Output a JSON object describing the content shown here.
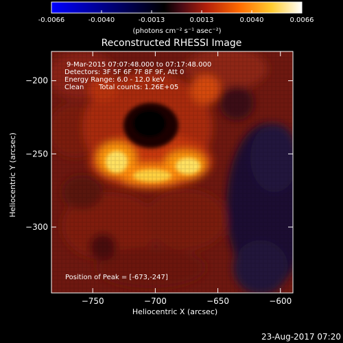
{
  "colorbar": {
    "ticks": [
      "-0.0066",
      "-0.0040",
      "-0.0013",
      "0.0013",
      "0.0040",
      "0.0066"
    ],
    "unit_label": "(photons cm⁻² s⁻¹ asec⁻²)",
    "colors": [
      "#0000ff",
      "#000000",
      "#5a0e18",
      "#c82a0a",
      "#ff7a00",
      "#ffd83a",
      "#ffffff"
    ]
  },
  "chart_data": {
    "type": "heatmap",
    "title": "Reconstructed RHESSI Image",
    "xlabel": "Heliocentric X (arcsec)",
    "ylabel": "Heliocentric Y (arcsec)",
    "xlim": [
      -783,
      -590
    ],
    "ylim": [
      -345,
      -180
    ],
    "x_ticks": [
      -750,
      -700,
      -650,
      -600
    ],
    "y_ticks": [
      -200,
      -250,
      -300
    ],
    "x_tick_labels": [
      "−750",
      "−700",
      "−650",
      "−600"
    ],
    "y_tick_labels": [
      "−200",
      "−250",
      "−300"
    ],
    "annotations": {
      "time_range": "9-Mar-2015 07:07:48.000 to 07:17:48.000",
      "detectors": "Detectors: 3F 5F 6F 7F 8F 9F, Att 0",
      "energy_range": "Energy Range: 6.0 - 12.0 keV",
      "clean": "Clean",
      "total_counts": "Total counts: 1.26E+05",
      "peak": "Position of Peak = [-673,-247]"
    },
    "peak_position": [
      -673,
      -247
    ]
  },
  "footer": {
    "timestamp": "23-Aug-2017 07:20"
  }
}
